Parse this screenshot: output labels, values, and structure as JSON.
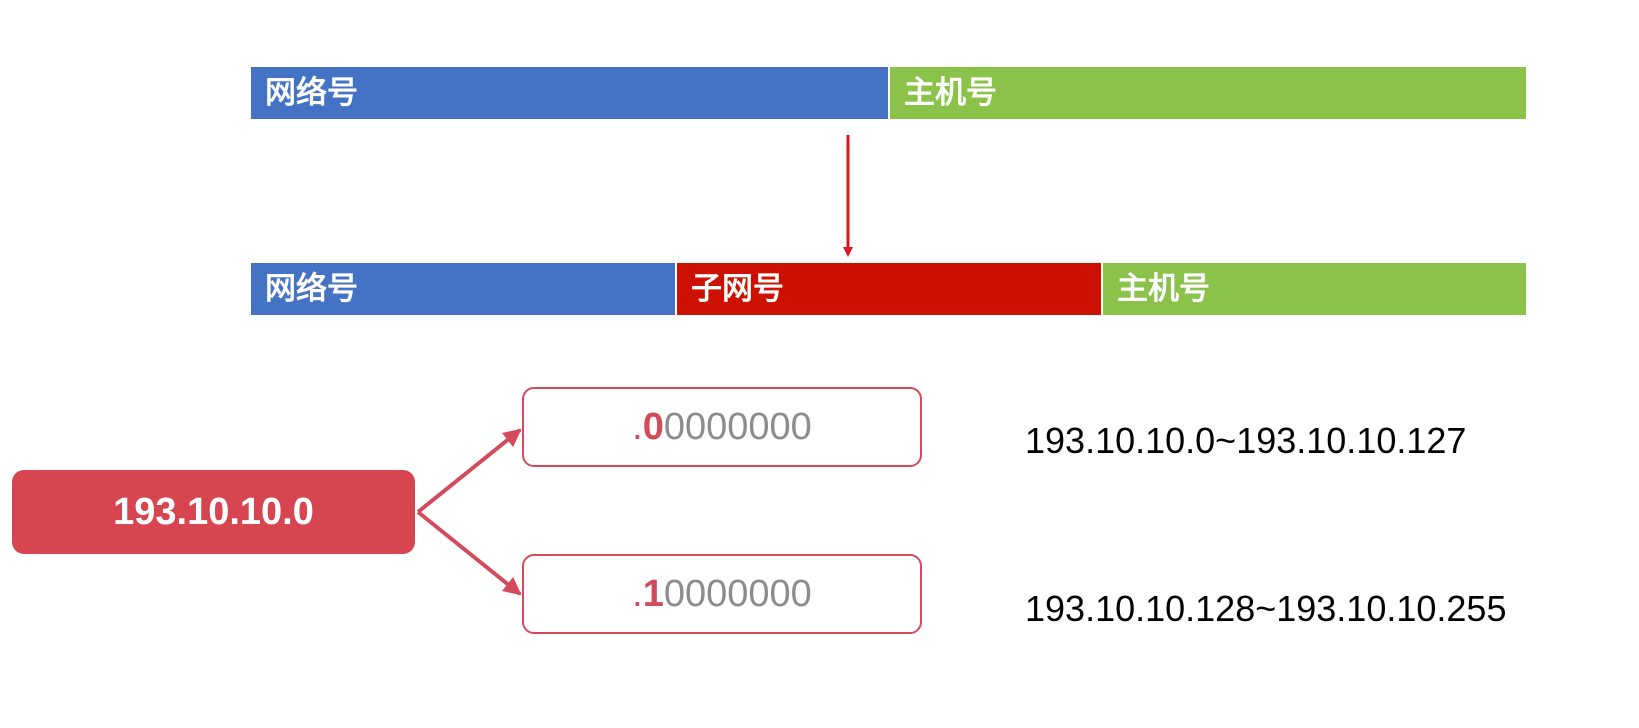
{
  "top_bar": {
    "network_label": "网络号",
    "host_label": "主机号"
  },
  "bottom_bar": {
    "network_label": "网络号",
    "subnet_label": "子网号",
    "host_label": "主机号"
  },
  "ip_address": "193.10.10.0",
  "subnets": [
    {
      "dot": ".",
      "first_bit": "0",
      "rest_bits": "0000000",
      "range": "193.10.10.0~193.10.10.127"
    },
    {
      "dot": ".",
      "first_bit": "1",
      "rest_bits": "0000000",
      "range": "193.10.10.128~193.10.10.255"
    }
  ],
  "colors": {
    "network": "#4472c4",
    "subnet": "#cc1100",
    "host": "#8bc34a",
    "ip_box": "#d64550",
    "arrow_down": "#e0141e",
    "arrow_branch": "#d14b5a"
  }
}
